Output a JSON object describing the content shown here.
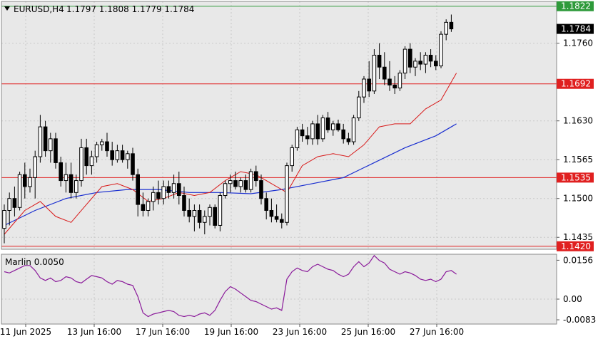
{
  "header": {
    "symbol": "EURUSD,H4",
    "ohlc": "1.1797 1.1808 1.1779 1.1784"
  },
  "indicator": {
    "label": "Marlin 0.0050"
  },
  "colors": {
    "background": "#ffffff",
    "plot_bg": "#e8e8e8",
    "grid": "#c9c9c9",
    "bull": "#ffffff",
    "bear": "#000000",
    "red_line": "#e02020",
    "red_badge": "#e02020",
    "green_line": "#2e9a3a",
    "blue_ma": "#1a2fd0",
    "red_ma": "#d81818",
    "oscillator": "#8a1a9a",
    "price_badge": "#000000"
  },
  "chart_data": [
    {
      "type": "candlestick",
      "title": "EURUSD,H4",
      "y_ticks": [
        "1.1760",
        "1.1630",
        "1.1565",
        "1.1500",
        "1.1435"
      ],
      "x_ticks": [
        "11 Jun 2025",
        "13 Jun 16:00",
        "17 Jun 16:00",
        "19 Jun 16:00",
        "23 Jun 16:00",
        "25 Jun 16:00",
        "27 Jun 16:00"
      ],
      "ylim": [
        1.1415,
        1.183
      ],
      "levels": [
        {
          "value": 1.1822,
          "label": "1.1822",
          "color": "green"
        },
        {
          "value": 1.1692,
          "label": "1.1692",
          "color": "red"
        },
        {
          "value": 1.1535,
          "label": "1.1535",
          "color": "red"
        },
        {
          "value": 1.142,
          "label": "1.1420",
          "color": "red"
        }
      ],
      "current_price": {
        "value": 1.1784,
        "label": "1.1784"
      },
      "candles": [
        [
          1.145,
          1.149,
          1.1425,
          1.148
        ],
        [
          1.148,
          1.151,
          1.1455,
          1.15
        ],
        [
          1.15,
          1.152,
          1.147,
          1.1485
        ],
        [
          1.1485,
          1.1545,
          1.148,
          1.154
        ],
        [
          1.154,
          1.156,
          1.15,
          1.152
        ],
        [
          1.152,
          1.155,
          1.151,
          1.1535
        ],
        [
          1.1535,
          1.158,
          1.15,
          1.157
        ],
        [
          1.157,
          1.164,
          1.156,
          1.162
        ],
        [
          1.162,
          1.163,
          1.157,
          1.158
        ],
        [
          1.158,
          1.161,
          1.156,
          1.16
        ],
        [
          1.16,
          1.161,
          1.155,
          1.156
        ],
        [
          1.156,
          1.157,
          1.152,
          1.153
        ],
        [
          1.153,
          1.156,
          1.151,
          1.154
        ],
        [
          1.154,
          1.156,
          1.15,
          1.151
        ],
        [
          1.151,
          1.154,
          1.15,
          1.153
        ],
        [
          1.153,
          1.16,
          1.152,
          1.1585
        ],
        [
          1.1585,
          1.16,
          1.154,
          1.1555
        ],
        [
          1.1555,
          1.158,
          1.154,
          1.157
        ],
        [
          1.157,
          1.1595,
          1.156,
          1.159
        ],
        [
          1.159,
          1.16,
          1.158,
          1.1595
        ],
        [
          1.1595,
          1.161,
          1.157,
          1.158
        ],
        [
          1.158,
          1.1595,
          1.1555,
          1.1565
        ],
        [
          1.1565,
          1.159,
          1.156,
          1.158
        ],
        [
          1.158,
          1.159,
          1.156,
          1.1565
        ],
        [
          1.1565,
          1.158,
          1.155,
          1.1575
        ],
        [
          1.1575,
          1.1585,
          1.153,
          1.154
        ],
        [
          1.154,
          1.155,
          1.147,
          1.149
        ],
        [
          1.149,
          1.151,
          1.147,
          1.148
        ],
        [
          1.148,
          1.15,
          1.147,
          1.1495
        ],
        [
          1.1495,
          1.152,
          1.148,
          1.151
        ],
        [
          1.151,
          1.153,
          1.149,
          1.15
        ],
        [
          1.15,
          1.153,
          1.149,
          1.152
        ],
        [
          1.152,
          1.153,
          1.15,
          1.151
        ],
        [
          1.151,
          1.154,
          1.15,
          1.1525
        ],
        [
          1.1525,
          1.1545,
          1.149,
          1.1505
        ],
        [
          1.1505,
          1.152,
          1.147,
          1.148
        ],
        [
          1.148,
          1.15,
          1.146,
          1.147
        ],
        [
          1.147,
          1.149,
          1.1445,
          1.148
        ],
        [
          1.148,
          1.149,
          1.145,
          1.146
        ],
        [
          1.146,
          1.148,
          1.144,
          1.147
        ],
        [
          1.147,
          1.149,
          1.1455,
          1.1485
        ],
        [
          1.1485,
          1.149,
          1.145,
          1.1455
        ],
        [
          1.1455,
          1.151,
          1.1445,
          1.1505
        ],
        [
          1.1505,
          1.153,
          1.15,
          1.1525
        ],
        [
          1.1525,
          1.154,
          1.151,
          1.153
        ],
        [
          1.153,
          1.1545,
          1.1515,
          1.152
        ],
        [
          1.152,
          1.1535,
          1.151,
          1.153
        ],
        [
          1.153,
          1.154,
          1.151,
          1.1515
        ],
        [
          1.1515,
          1.155,
          1.151,
          1.1545
        ],
        [
          1.1545,
          1.1555,
          1.152,
          1.153
        ],
        [
          1.153,
          1.154,
          1.149,
          1.15
        ],
        [
          1.15,
          1.151,
          1.1465,
          1.148
        ],
        [
          1.148,
          1.15,
          1.146,
          1.147
        ],
        [
          1.147,
          1.149,
          1.146,
          1.1465
        ],
        [
          1.1465,
          1.1475,
          1.145,
          1.146
        ],
        [
          1.146,
          1.156,
          1.1455,
          1.1555
        ],
        [
          1.1555,
          1.159,
          1.1545,
          1.1585
        ],
        [
          1.1585,
          1.162,
          1.158,
          1.1615
        ],
        [
          1.1615,
          1.1625,
          1.1595,
          1.1605
        ],
        [
          1.1605,
          1.162,
          1.159,
          1.16
        ],
        [
          1.16,
          1.163,
          1.159,
          1.1625
        ],
        [
          1.1625,
          1.164,
          1.159,
          1.16
        ],
        [
          1.16,
          1.164,
          1.1595,
          1.1635
        ],
        [
          1.1635,
          1.1645,
          1.161,
          1.1615
        ],
        [
          1.1615,
          1.163,
          1.1605,
          1.1625
        ],
        [
          1.1625,
          1.1632,
          1.1612,
          1.1615
        ],
        [
          1.1615,
          1.1625,
          1.1592,
          1.16
        ],
        [
          1.16,
          1.161,
          1.159,
          1.1595
        ],
        [
          1.1595,
          1.164,
          1.159,
          1.1635
        ],
        [
          1.1635,
          1.168,
          1.163,
          1.167
        ],
        [
          1.167,
          1.1705,
          1.166,
          1.17
        ],
        [
          1.17,
          1.173,
          1.167,
          1.168
        ],
        [
          1.168,
          1.175,
          1.1675,
          1.174
        ],
        [
          1.174,
          1.176,
          1.17,
          1.172
        ],
        [
          1.172,
          1.1745,
          1.169,
          1.17
        ],
        [
          1.17,
          1.173,
          1.168,
          1.169
        ],
        [
          1.169,
          1.1705,
          1.1675,
          1.1685
        ],
        [
          1.1685,
          1.1715,
          1.168,
          1.171
        ],
        [
          1.171,
          1.1755,
          1.17,
          1.175
        ],
        [
          1.175,
          1.176,
          1.171,
          1.172
        ],
        [
          1.172,
          1.1735,
          1.1705,
          1.173
        ],
        [
          1.173,
          1.1745,
          1.1715,
          1.1725
        ],
        [
          1.1725,
          1.1745,
          1.171,
          1.174
        ],
        [
          1.174,
          1.175,
          1.172,
          1.173
        ],
        [
          1.173,
          1.174,
          1.1715,
          1.1722
        ],
        [
          1.1722,
          1.178,
          1.1718,
          1.1775
        ],
        [
          1.1775,
          1.18,
          1.1765,
          1.1795
        ],
        [
          1.1795,
          1.1808,
          1.1779,
          1.1784
        ]
      ],
      "ma_blue": [
        [
          0,
          1.1455
        ],
        [
          6,
          1.148
        ],
        [
          12,
          1.15
        ],
        [
          18,
          1.151
        ],
        [
          24,
          1.1515
        ],
        [
          30,
          1.1515
        ],
        [
          36,
          1.151
        ],
        [
          42,
          1.151
        ],
        [
          48,
          1.1508
        ],
        [
          54,
          1.1515
        ],
        [
          60,
          1.1525
        ],
        [
          66,
          1.1535
        ],
        [
          72,
          1.156
        ],
        [
          78,
          1.1585
        ],
        [
          84,
          1.1605
        ],
        [
          88,
          1.1625
        ]
      ],
      "ma_red": [
        [
          0,
          1.144
        ],
        [
          4,
          1.148
        ],
        [
          7,
          1.1495
        ],
        [
          10,
          1.147
        ],
        [
          13,
          1.146
        ],
        [
          16,
          1.149
        ],
        [
          19,
          1.152
        ],
        [
          22,
          1.1525
        ],
        [
          25,
          1.1515
        ],
        [
          28,
          1.1495
        ],
        [
          31,
          1.15
        ],
        [
          34,
          1.151
        ],
        [
          37,
          1.1505
        ],
        [
          40,
          1.151
        ],
        [
          43,
          1.153
        ],
        [
          46,
          1.1545
        ],
        [
          49,
          1.154
        ],
        [
          52,
          1.1525
        ],
        [
          55,
          1.151
        ],
        [
          58,
          1.1555
        ],
        [
          61,
          1.157
        ],
        [
          64,
          1.1575
        ],
        [
          67,
          1.157
        ],
        [
          70,
          1.159
        ],
        [
          73,
          1.162
        ],
        [
          76,
          1.1625
        ],
        [
          79,
          1.1625
        ],
        [
          82,
          1.165
        ],
        [
          85,
          1.1665
        ],
        [
          88,
          1.171
        ]
      ]
    },
    {
      "type": "line",
      "title": "Marlin 0.0050",
      "y_ticks": [
        "0.0156",
        "0.00",
        "-0.0083"
      ],
      "ylim": [
        -0.01,
        0.018
      ],
      "series": [
        {
          "values": [
            0.011,
            0.0105,
            0.0115,
            0.0125,
            0.0135,
            0.0135,
            0.0115,
            0.0085,
            0.0075,
            0.0085,
            0.007,
            0.0075,
            0.009,
            0.0085,
            0.007,
            0.0065,
            0.008,
            0.0095,
            0.009,
            0.0085,
            0.007,
            0.006,
            0.0075,
            0.007,
            0.006,
            0.0055,
            0.001,
            -0.0055,
            -0.007,
            -0.006,
            -0.0055,
            -0.005,
            -0.0045,
            -0.005,
            -0.0065,
            -0.007,
            -0.0065,
            -0.007,
            -0.006,
            -0.0055,
            -0.0065,
            -0.0045,
            -0.0005,
            0.003,
            0.005,
            0.004,
            0.0025,
            0.001,
            -0.0005,
            -0.001,
            -0.002,
            -0.003,
            -0.004,
            -0.0035,
            -0.0045,
            0.008,
            0.011,
            0.0125,
            0.0115,
            0.011,
            0.013,
            0.014,
            0.013,
            0.012,
            0.0115,
            0.01,
            0.009,
            0.01,
            0.013,
            0.015,
            0.013,
            0.0145,
            0.0175,
            0.0155,
            0.0145,
            0.012,
            0.011,
            0.01,
            0.011,
            0.0105,
            0.0095,
            0.008,
            0.0075,
            0.008,
            0.007,
            0.008,
            0.011,
            0.0115,
            0.01
          ]
        }
      ]
    }
  ]
}
